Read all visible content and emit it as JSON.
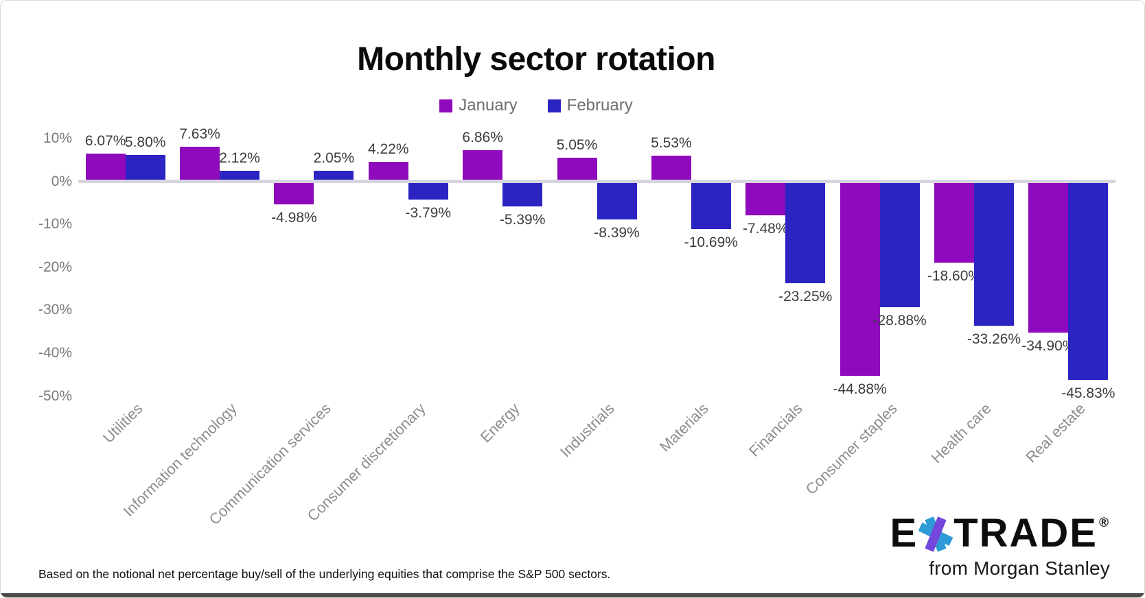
{
  "title": "Monthly sector rotation",
  "legend": [
    {
      "label": "January",
      "color": "#8e0abc"
    },
    {
      "label": "February",
      "color": "#2b24c3"
    }
  ],
  "chart_data": {
    "type": "bar",
    "title": "Monthly sector rotation",
    "categories": [
      "Utilities",
      "Information technology",
      "Communication services",
      "Consumer discretionary",
      "Energy",
      "Industrials",
      "Materials",
      "Financials",
      "Consumer staples",
      "Health care",
      "Real estate"
    ],
    "series": [
      {
        "name": "January",
        "color": "#8e0abc",
        "values": [
          6.07,
          7.63,
          -4.98,
          4.22,
          6.86,
          5.05,
          5.53,
          -7.48,
          -44.88,
          -18.6,
          -34.9
        ],
        "labels": [
          "6.07%",
          "7.63%",
          "-4.98%",
          "4.22%",
          "6.86%",
          "5.05%",
          "5.53%",
          "-7.48%",
          "-44.88%",
          "-18.60%",
          "-34.90%"
        ]
      },
      {
        "name": "February",
        "color": "#2b24c3",
        "values": [
          5.8,
          2.12,
          2.05,
          -3.79,
          -5.39,
          -8.39,
          -10.69,
          -23.25,
          -28.88,
          -33.26,
          -45.83
        ],
        "labels": [
          "5.80%",
          "2.12%",
          "2.05%",
          "-3.79%",
          "-5.39%",
          "-8.39%",
          "-10.69%",
          "-23.25%",
          "-28.88%",
          "-33.26%",
          "-45.83%"
        ]
      }
    ],
    "ytick_labels": [
      "10%",
      "0%",
      "-10%",
      "-20%",
      "-30%",
      "-40%",
      "-50%"
    ],
    "yticks": [
      10,
      0,
      -10,
      -20,
      -30,
      -40,
      -50
    ],
    "ylim": [
      -50,
      10
    ],
    "grid": false,
    "zero_line_color": "#d6d5df",
    "legend_position": "top",
    "value_labels_shown": true
  },
  "footnote": "Based on the notional net percentage buy/sell of the underlying equities that comprise the S&P 500 sectors.",
  "brand": {
    "logo_prefix": "E",
    "logo_suffix": "TRADE",
    "registered_mark": "®",
    "tagline": "from Morgan Stanley",
    "star_purple": "#7546db",
    "star_blue": "#2e9bd6"
  }
}
